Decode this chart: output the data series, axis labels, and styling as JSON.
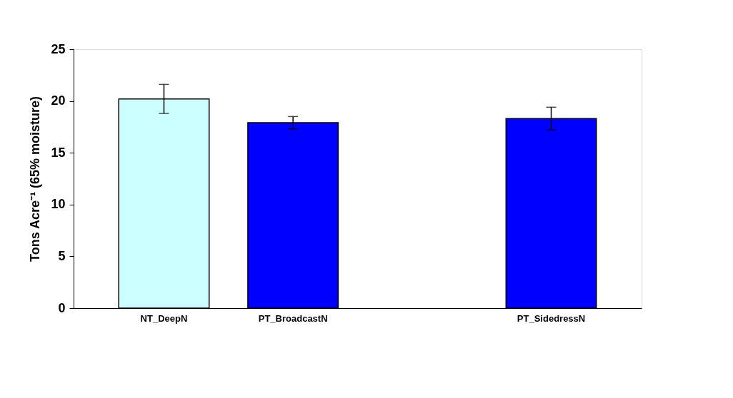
{
  "chart_data": {
    "type": "bar",
    "categories": [
      "NT_DeepN",
      "PT_BroadcastN",
      null,
      "PT_SidedressN"
    ],
    "values": [
      20.2,
      17.9,
      null,
      18.3
    ],
    "errors": [
      1.4,
      0.6,
      null,
      1.1
    ],
    "colors": [
      "#ccffff",
      "#0000ff",
      null,
      "#0000ff"
    ],
    "ylabel": "Tons Acre⁻¹ (65% moisture)",
    "ylim": [
      0,
      25
    ],
    "yticks": [
      0,
      5,
      10,
      15,
      20,
      25
    ],
    "grid": false
  }
}
